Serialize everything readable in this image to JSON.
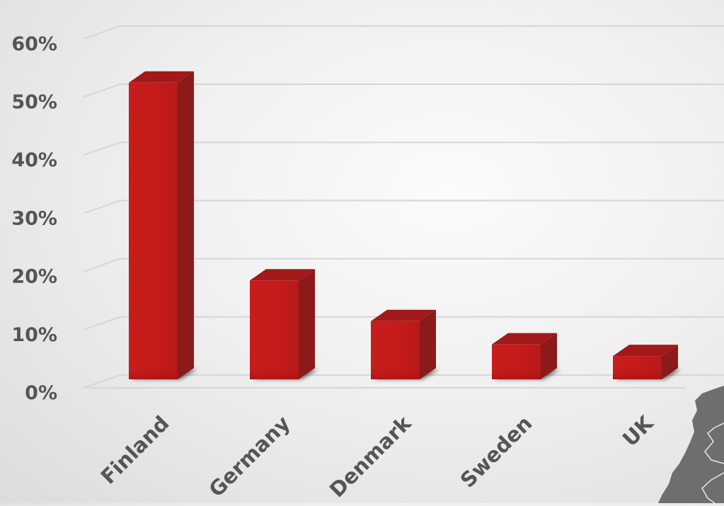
{
  "chart_data": {
    "type": "bar",
    "categories": [
      "Finland",
      "Germany",
      "Denmark",
      "Sweden",
      "UK"
    ],
    "values": [
      51,
      17,
      10,
      6,
      4
    ],
    "yticks": [
      "0%",
      "10%",
      "20%",
      "30%",
      "40%",
      "50%",
      "60%"
    ],
    "ylim": [
      0,
      60
    ],
    "grid": true,
    "legend": "none",
    "title": "",
    "xlabel": "",
    "ylabel": "",
    "colors": {
      "bar_front": "#c41b1b",
      "bar_side": "#8c1a1a",
      "bar_top": "#a31818",
      "text": "#555555",
      "grid": "#d6d6d6",
      "map": "#6e6e6e"
    }
  }
}
